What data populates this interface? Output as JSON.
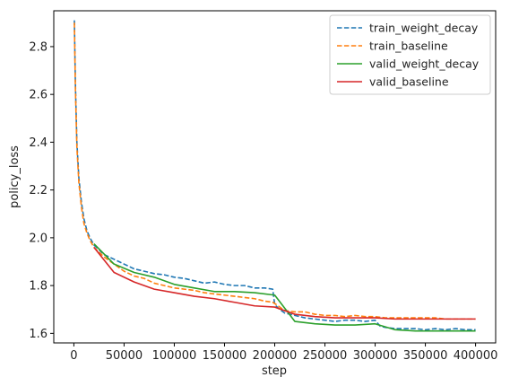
{
  "chart_data": {
    "type": "line",
    "title": "",
    "xlabel": "step",
    "ylabel": "policy_loss",
    "xlim": [
      -20000,
      420000
    ],
    "ylim": [
      1.56,
      2.95
    ],
    "xticks": [
      0,
      50000,
      100000,
      150000,
      200000,
      250000,
      300000,
      350000,
      400000
    ],
    "xtick_labels": [
      "0",
      "50000",
      "100000",
      "150000",
      "200000",
      "250000",
      "300000",
      "350000",
      "400000"
    ],
    "yticks": [
      1.6,
      1.8,
      2.0,
      2.2,
      2.4,
      2.6,
      2.8
    ],
    "ytick_labels": [
      "1.6",
      "1.8",
      "2.0",
      "2.2",
      "2.4",
      "2.6",
      "2.8"
    ],
    "grid": false,
    "legend": "top-right",
    "series": [
      {
        "name": "train_weight_decay",
        "color": "#1f77b4",
        "style": "dashed",
        "x": [
          500,
          1500,
          3000,
          5000,
          7500,
          10000,
          13000,
          16000,
          20000,
          25000,
          30000,
          40000,
          50000,
          60000,
          70000,
          80000,
          90000,
          100000,
          110000,
          120000,
          130000,
          140000,
          150000,
          160000,
          170000,
          180000,
          190000,
          198000,
          200000,
          205000,
          210000,
          220000,
          230000,
          240000,
          250000,
          260000,
          270000,
          280000,
          290000,
          300000,
          305000,
          310000,
          320000,
          330000,
          340000,
          350000,
          360000,
          370000,
          380000,
          390000,
          400000
        ],
        "y": [
          2.91,
          2.65,
          2.4,
          2.25,
          2.15,
          2.08,
          2.03,
          2.0,
          1.97,
          1.95,
          1.93,
          1.91,
          1.89,
          1.87,
          1.86,
          1.85,
          1.845,
          1.835,
          1.83,
          1.82,
          1.81,
          1.815,
          1.805,
          1.8,
          1.8,
          1.79,
          1.79,
          1.785,
          1.72,
          1.7,
          1.685,
          1.675,
          1.665,
          1.66,
          1.655,
          1.65,
          1.655,
          1.655,
          1.65,
          1.655,
          1.63,
          1.625,
          1.62,
          1.62,
          1.62,
          1.615,
          1.62,
          1.615,
          1.62,
          1.615,
          1.615
        ]
      },
      {
        "name": "train_baseline",
        "color": "#ff7f0e",
        "style": "dashed",
        "x": [
          500,
          1500,
          3000,
          5000,
          7500,
          10000,
          13000,
          16000,
          20000,
          25000,
          30000,
          40000,
          50000,
          60000,
          70000,
          80000,
          90000,
          100000,
          110000,
          120000,
          130000,
          140000,
          150000,
          160000,
          170000,
          180000,
          190000,
          198000,
          200000,
          210000,
          220000,
          230000,
          240000,
          250000,
          260000,
          270000,
          280000,
          290000,
          300000,
          310000,
          320000,
          330000,
          340000,
          350000,
          360000,
          370000,
          380000,
          390000,
          400000
        ],
        "y": [
          2.9,
          2.63,
          2.38,
          2.23,
          2.13,
          2.06,
          2.02,
          1.99,
          1.96,
          1.94,
          1.92,
          1.89,
          1.86,
          1.84,
          1.83,
          1.81,
          1.8,
          1.79,
          1.785,
          1.78,
          1.77,
          1.765,
          1.76,
          1.755,
          1.75,
          1.745,
          1.735,
          1.73,
          1.725,
          1.695,
          1.69,
          1.69,
          1.68,
          1.675,
          1.675,
          1.67,
          1.675,
          1.67,
          1.67,
          1.665,
          1.665,
          1.665,
          1.665,
          1.665,
          1.665,
          1.66,
          1.66,
          1.66,
          1.66
        ]
      },
      {
        "name": "valid_weight_decay",
        "color": "#2ca02c",
        "style": "solid",
        "x": [
          20000,
          40000,
          60000,
          80000,
          100000,
          120000,
          140000,
          160000,
          180000,
          200000,
          220000,
          240000,
          260000,
          280000,
          300000,
          320000,
          340000,
          360000,
          380000,
          400000
        ],
        "y": [
          1.975,
          1.89,
          1.855,
          1.835,
          1.805,
          1.79,
          1.775,
          1.775,
          1.77,
          1.76,
          1.65,
          1.64,
          1.635,
          1.635,
          1.64,
          1.615,
          1.61,
          1.61,
          1.61,
          1.61
        ]
      },
      {
        "name": "valid_baseline",
        "color": "#d62728",
        "style": "solid",
        "x": [
          20000,
          40000,
          60000,
          80000,
          100000,
          120000,
          140000,
          160000,
          180000,
          200000,
          220000,
          240000,
          260000,
          280000,
          300000,
          320000,
          340000,
          360000,
          380000,
          400000
        ],
        "y": [
          1.96,
          1.855,
          1.815,
          1.785,
          1.77,
          1.755,
          1.745,
          1.73,
          1.715,
          1.71,
          1.68,
          1.67,
          1.665,
          1.665,
          1.665,
          1.66,
          1.66,
          1.66,
          1.66,
          1.66
        ]
      }
    ]
  }
}
